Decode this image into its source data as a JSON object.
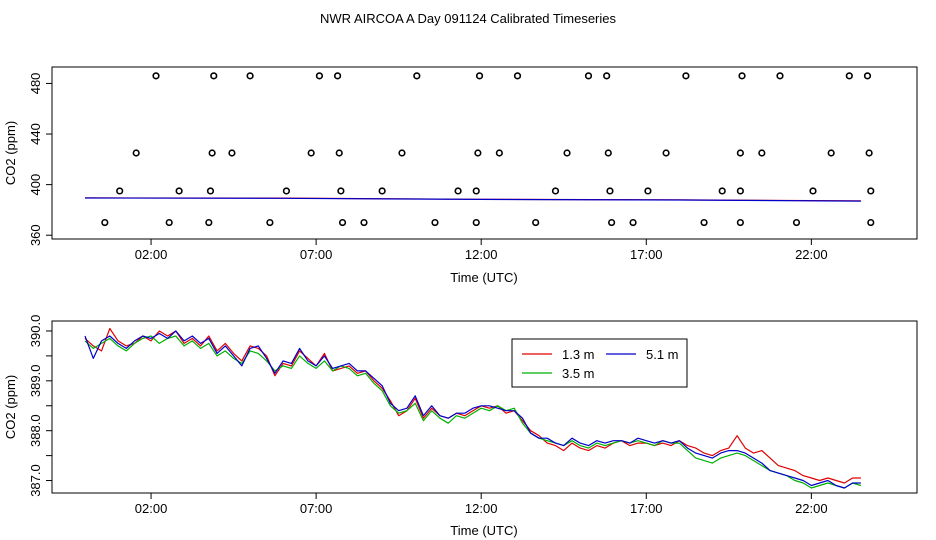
{
  "title": "NWR AIRCOA A  Day 091124  Calibrated Timeseries",
  "colors": {
    "red": "#e00000",
    "green": "#00b000",
    "blue": "#0000cc",
    "points": "#000000"
  },
  "chart_data": [
    {
      "type": "scatter",
      "xlabel": "Time (UTC)",
      "ylabel": "CO2 (ppm)",
      "xlim": [
        -1.0,
        25.2
      ],
      "ylim": [
        357,
        493
      ],
      "xticks": [
        2,
        7,
        12,
        17,
        22
      ],
      "xtick_labels": [
        "02:00",
        "07:00",
        "12:00",
        "17:00",
        "22:00"
      ],
      "yticks": [
        360,
        400,
        440,
        480
      ],
      "ytick_labels": [
        "360",
        "400",
        "440",
        "480"
      ],
      "grid": false,
      "series": [
        {
          "color": "points",
          "marker": "open-circle",
          "points": [
            [
              2.15,
              486
            ],
            [
              3.9,
              486
            ],
            [
              5.0,
              486
            ],
            [
              7.1,
              486
            ],
            [
              7.65,
              486
            ],
            [
              10.05,
              486
            ],
            [
              11.95,
              486
            ],
            [
              13.1,
              486
            ],
            [
              15.25,
              486
            ],
            [
              15.8,
              486
            ],
            [
              18.2,
              486
            ],
            [
              19.9,
              486
            ],
            [
              21.05,
              486
            ],
            [
              23.15,
              486
            ],
            [
              23.7,
              486
            ],
            [
              1.55,
              425
            ],
            [
              3.85,
              425
            ],
            [
              4.45,
              425
            ],
            [
              6.85,
              425
            ],
            [
              7.7,
              425
            ],
            [
              9.6,
              425
            ],
            [
              11.9,
              425
            ],
            [
              12.55,
              425
            ],
            [
              14.6,
              425
            ],
            [
              15.85,
              425
            ],
            [
              17.6,
              425
            ],
            [
              19.85,
              425
            ],
            [
              20.5,
              425
            ],
            [
              22.6,
              425
            ],
            [
              23.75,
              425
            ],
            [
              1.05,
              395
            ],
            [
              2.85,
              395
            ],
            [
              3.8,
              395
            ],
            [
              6.1,
              395
            ],
            [
              7.75,
              395
            ],
            [
              9.0,
              395
            ],
            [
              11.3,
              395
            ],
            [
              11.85,
              395
            ],
            [
              14.25,
              395
            ],
            [
              15.9,
              395
            ],
            [
              17.05,
              395
            ],
            [
              19.3,
              395
            ],
            [
              19.85,
              395
            ],
            [
              22.05,
              395
            ],
            [
              23.8,
              395
            ],
            [
              0.6,
              370
            ],
            [
              2.55,
              370
            ],
            [
              3.75,
              370
            ],
            [
              5.6,
              370
            ],
            [
              7.8,
              370
            ],
            [
              8.45,
              370
            ],
            [
              10.6,
              370
            ],
            [
              11.85,
              370
            ],
            [
              13.65,
              370
            ],
            [
              15.95,
              370
            ],
            [
              16.6,
              370
            ],
            [
              18.75,
              370
            ],
            [
              19.85,
              370
            ],
            [
              21.55,
              370
            ],
            [
              23.8,
              370
            ]
          ]
        },
        {
          "color": "red",
          "name": "",
          "points": [
            [
              0,
              389.5
            ],
            [
              6,
              389.3
            ],
            [
              12,
              388.4
            ],
            [
              18,
              387.9
            ],
            [
              23.5,
              387.2
            ]
          ]
        },
        {
          "color": "blue",
          "name": "",
          "points": [
            [
              0,
              389.4
            ],
            [
              6,
              389.2
            ],
            [
              12,
              388.3
            ],
            [
              18,
              387.8
            ],
            [
              23.5,
              387.0
            ]
          ]
        }
      ]
    },
    {
      "type": "line",
      "xlabel": "Time (UTC)",
      "ylabel": "CO2 (ppm)",
      "xlim": [
        -1.0,
        25.2
      ],
      "ylim": [
        386.75,
        390.2
      ],
      "xticks": [
        2,
        7,
        12,
        17,
        22
      ],
      "xtick_labels": [
        "02:00",
        "07:00",
        "12:00",
        "17:00",
        "22:00"
      ],
      "yticks": [
        387.0,
        387.5,
        388.0,
        388.5,
        389.0,
        389.5,
        390.0
      ],
      "ytick_labels": [
        "387.0",
        "",
        "388.0",
        "",
        "389.0",
        "",
        "390.0"
      ],
      "grid": false,
      "legend": {
        "position": "top-right",
        "entries": [
          "1.3 m",
          "5.1 m",
          "3.5 m"
        ]
      },
      "series": [
        {
          "name": "1.3 m",
          "color": "red",
          "x": [
            0.0,
            0.25,
            0.5,
            0.75,
            1.0,
            1.25,
            1.5,
            1.75,
            2.0,
            2.25,
            2.5,
            2.75,
            3.0,
            3.25,
            3.5,
            3.75,
            4.0,
            4.25,
            4.5,
            4.75,
            5.0,
            5.25,
            5.5,
            5.75,
            6.0,
            6.25,
            6.5,
            6.75,
            7.0,
            7.25,
            7.5,
            7.75,
            8.0,
            8.25,
            8.5,
            8.75,
            9.0,
            9.25,
            9.5,
            9.75,
            10.0,
            10.25,
            10.5,
            10.75,
            11.0,
            11.25,
            11.5,
            11.75,
            12.0,
            12.25,
            12.5,
            12.75,
            13.0,
            13.25,
            13.5,
            13.75,
            14.0,
            14.25,
            14.5,
            14.75,
            15.0,
            15.25,
            15.5,
            15.75,
            16.0,
            16.25,
            16.5,
            16.75,
            17.0,
            17.25,
            17.5,
            17.75,
            18.0,
            18.25,
            18.5,
            18.75,
            19.0,
            19.25,
            19.5,
            19.75,
            20.0,
            20.25,
            20.5,
            20.75,
            21.0,
            21.25,
            21.5,
            21.75,
            22.0,
            22.25,
            22.5,
            22.75,
            23.0,
            23.25,
            23.5
          ],
          "y": [
            389.85,
            389.7,
            389.6,
            390.05,
            389.8,
            389.7,
            389.75,
            389.9,
            389.8,
            390.0,
            389.9,
            390.0,
            389.75,
            389.85,
            389.7,
            389.9,
            389.6,
            389.75,
            389.55,
            389.4,
            389.7,
            389.65,
            389.5,
            389.1,
            389.35,
            389.3,
            389.6,
            389.45,
            389.3,
            389.55,
            389.2,
            389.25,
            389.3,
            389.15,
            389.2,
            389.0,
            388.85,
            388.6,
            388.3,
            388.4,
            388.65,
            388.25,
            388.45,
            388.3,
            388.25,
            388.35,
            388.3,
            388.4,
            388.5,
            388.45,
            388.5,
            388.35,
            388.4,
            388.2,
            388.0,
            387.9,
            387.75,
            387.7,
            387.6,
            387.75,
            387.65,
            387.6,
            387.7,
            387.65,
            387.75,
            387.8,
            387.7,
            387.75,
            387.75,
            387.7,
            387.75,
            387.7,
            387.8,
            387.7,
            387.65,
            387.55,
            387.5,
            387.6,
            387.65,
            387.9,
            387.65,
            387.55,
            387.6,
            387.45,
            387.3,
            387.25,
            387.2,
            387.1,
            387.05,
            387.0,
            387.05,
            387.0,
            386.95,
            387.05,
            387.05
          ]
        },
        {
          "name": "3.5 m",
          "color": "green",
          "x": [
            0.0,
            0.25,
            0.5,
            0.75,
            1.0,
            1.25,
            1.5,
            1.75,
            2.0,
            2.25,
            2.5,
            2.75,
            3.0,
            3.25,
            3.5,
            3.75,
            4.0,
            4.25,
            4.5,
            4.75,
            5.0,
            5.25,
            5.5,
            5.75,
            6.0,
            6.25,
            6.5,
            6.75,
            7.0,
            7.25,
            7.5,
            7.75,
            8.0,
            8.25,
            8.5,
            8.75,
            9.0,
            9.25,
            9.5,
            9.75,
            10.0,
            10.25,
            10.5,
            10.75,
            11.0,
            11.25,
            11.5,
            11.75,
            12.0,
            12.25,
            12.5,
            12.75,
            13.0,
            13.25,
            13.5,
            13.75,
            14.0,
            14.25,
            14.5,
            14.75,
            15.0,
            15.25,
            15.5,
            15.75,
            16.0,
            16.25,
            16.5,
            16.75,
            17.0,
            17.25,
            17.5,
            17.75,
            18.0,
            18.25,
            18.5,
            18.75,
            19.0,
            19.25,
            19.5,
            19.75,
            20.0,
            20.25,
            20.5,
            20.75,
            21.0,
            21.25,
            21.5,
            21.75,
            22.0,
            22.25,
            22.5,
            22.75,
            23.0,
            23.25,
            23.5
          ],
          "y": [
            389.8,
            389.65,
            389.75,
            389.85,
            389.7,
            389.6,
            389.75,
            389.85,
            389.9,
            389.75,
            389.85,
            389.9,
            389.7,
            389.8,
            389.65,
            389.75,
            389.5,
            389.6,
            389.45,
            389.35,
            389.6,
            389.55,
            389.4,
            389.2,
            389.3,
            389.25,
            389.5,
            389.35,
            389.25,
            389.4,
            389.2,
            389.3,
            389.25,
            389.1,
            389.15,
            388.95,
            388.8,
            388.5,
            388.35,
            388.4,
            388.55,
            388.2,
            388.4,
            388.25,
            388.15,
            388.3,
            388.25,
            388.35,
            388.45,
            388.4,
            388.5,
            388.4,
            388.45,
            388.15,
            387.95,
            387.85,
            387.8,
            387.75,
            387.7,
            387.8,
            387.7,
            387.65,
            387.75,
            387.7,
            387.75,
            387.8,
            387.75,
            387.8,
            387.75,
            387.7,
            387.8,
            387.75,
            387.75,
            387.6,
            387.45,
            387.4,
            387.35,
            387.45,
            387.5,
            387.55,
            387.5,
            387.4,
            387.3,
            387.2,
            387.15,
            387.1,
            387.0,
            386.95,
            386.85,
            386.9,
            386.95,
            386.9,
            386.85,
            386.95,
            386.9
          ]
        },
        {
          "name": "5.1 m",
          "color": "blue",
          "x": [
            0.0,
            0.25,
            0.5,
            0.75,
            1.0,
            1.25,
            1.5,
            1.75,
            2.0,
            2.25,
            2.5,
            2.75,
            3.0,
            3.25,
            3.5,
            3.75,
            4.0,
            4.25,
            4.5,
            4.75,
            5.0,
            5.25,
            5.5,
            5.75,
            6.0,
            6.25,
            6.5,
            6.75,
            7.0,
            7.25,
            7.5,
            7.75,
            8.0,
            8.25,
            8.5,
            8.75,
            9.0,
            9.25,
            9.5,
            9.75,
            10.0,
            10.25,
            10.5,
            10.75,
            11.0,
            11.25,
            11.5,
            11.75,
            12.0,
            12.25,
            12.5,
            12.75,
            13.0,
            13.25,
            13.5,
            13.75,
            14.0,
            14.25,
            14.5,
            14.75,
            15.0,
            15.25,
            15.5,
            15.75,
            16.0,
            16.25,
            16.5,
            16.75,
            17.0,
            17.25,
            17.5,
            17.75,
            18.0,
            18.25,
            18.5,
            18.75,
            19.0,
            19.25,
            19.5,
            19.75,
            20.0,
            20.25,
            20.5,
            20.75,
            21.0,
            21.25,
            21.5,
            21.75,
            22.0,
            22.25,
            22.5,
            22.75,
            23.0,
            23.25,
            23.5
          ],
          "y": [
            389.9,
            389.45,
            389.8,
            389.9,
            389.75,
            389.65,
            389.8,
            389.9,
            389.85,
            389.95,
            389.85,
            390.0,
            389.8,
            389.9,
            389.75,
            389.85,
            389.55,
            389.7,
            389.5,
            389.3,
            389.65,
            389.7,
            389.45,
            389.15,
            389.4,
            389.35,
            389.65,
            389.4,
            389.3,
            389.5,
            389.25,
            389.3,
            389.35,
            389.2,
            389.2,
            389.05,
            388.9,
            388.55,
            388.4,
            388.45,
            388.7,
            388.3,
            388.5,
            388.3,
            388.25,
            388.35,
            388.35,
            388.45,
            388.5,
            388.5,
            388.45,
            388.4,
            388.4,
            388.25,
            387.95,
            387.85,
            387.85,
            387.75,
            387.7,
            387.85,
            387.75,
            387.7,
            387.8,
            387.75,
            387.8,
            387.8,
            387.75,
            387.85,
            387.8,
            387.75,
            387.8,
            387.75,
            387.8,
            387.65,
            387.55,
            387.5,
            387.45,
            387.55,
            387.6,
            387.6,
            387.55,
            387.45,
            387.35,
            387.2,
            387.15,
            387.1,
            387.05,
            387.0,
            386.9,
            386.95,
            387.0,
            386.9,
            386.85,
            386.95,
            386.95
          ]
        }
      ]
    }
  ]
}
